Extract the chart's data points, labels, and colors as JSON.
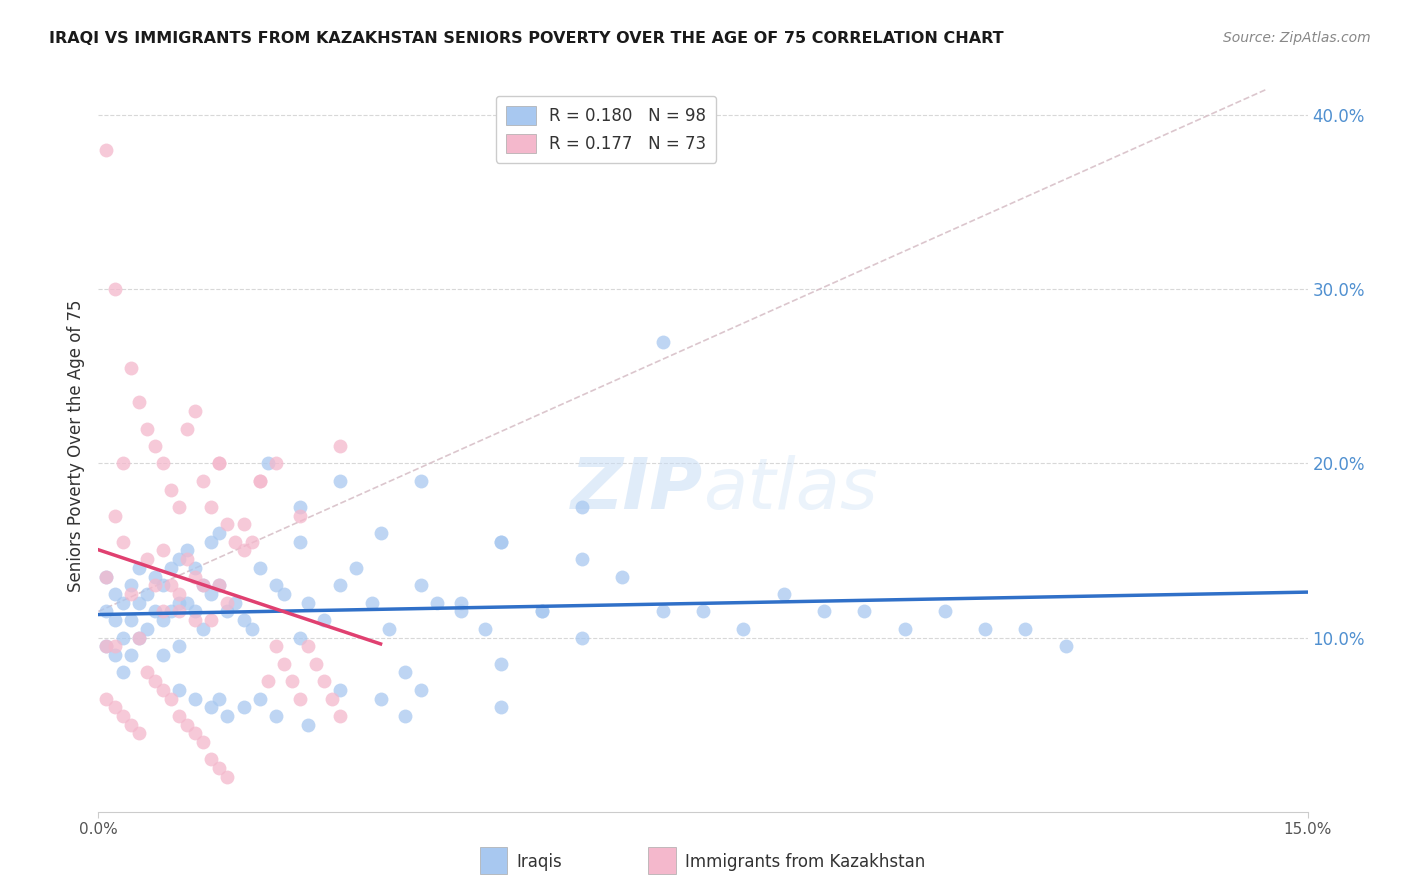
{
  "title": "IRAQI VS IMMIGRANTS FROM KAZAKHSTAN SENIORS POVERTY OVER THE AGE OF 75 CORRELATION CHART",
  "source": "Source: ZipAtlas.com",
  "ylabel": "Seniors Poverty Over the Age of 75",
  "xlim": [
    0.0,
    0.15
  ],
  "ylim": [
    0.0,
    0.42
  ],
  "yticks": [
    0.1,
    0.2,
    0.3,
    0.4
  ],
  "ytick_labels": [
    "10.0%",
    "20.0%",
    "30.0%",
    "40.0%"
  ],
  "iraqi_color": "#a8c8f0",
  "kaz_color": "#f4b8cc",
  "iraqi_line_color": "#3070c8",
  "kaz_line_color": "#e04070",
  "diag_line_color": "#d8c0c8",
  "R_iraqi": 0.18,
  "N_iraqi": 98,
  "R_kaz": 0.177,
  "N_kaz": 73,
  "watermark": "ZIPatlas",
  "background_color": "#ffffff",
  "grid_color": "#d8d8d8",
  "iraqi_x": [
    0.001,
    0.001,
    0.001,
    0.002,
    0.002,
    0.002,
    0.003,
    0.003,
    0.003,
    0.004,
    0.004,
    0.004,
    0.005,
    0.005,
    0.005,
    0.006,
    0.006,
    0.007,
    0.007,
    0.008,
    0.008,
    0.008,
    0.009,
    0.009,
    0.01,
    0.01,
    0.01,
    0.011,
    0.011,
    0.012,
    0.012,
    0.013,
    0.013,
    0.014,
    0.014,
    0.015,
    0.015,
    0.016,
    0.017,
    0.018,
    0.019,
    0.02,
    0.021,
    0.022,
    0.023,
    0.025,
    0.026,
    0.028,
    0.03,
    0.032,
    0.034,
    0.036,
    0.038,
    0.04,
    0.042,
    0.045,
    0.048,
    0.05,
    0.055,
    0.06,
    0.065,
    0.07,
    0.075,
    0.08,
    0.085,
    0.09,
    0.095,
    0.1,
    0.105,
    0.11,
    0.115,
    0.12,
    0.038,
    0.05,
    0.06,
    0.07,
    0.02,
    0.025,
    0.03,
    0.035,
    0.04,
    0.045,
    0.05,
    0.055,
    0.015,
    0.018,
    0.022,
    0.026,
    0.01,
    0.012,
    0.014,
    0.016,
    0.025,
    0.03,
    0.035,
    0.04,
    0.05,
    0.06
  ],
  "iraqi_y": [
    0.135,
    0.115,
    0.095,
    0.125,
    0.11,
    0.09,
    0.12,
    0.1,
    0.08,
    0.13,
    0.11,
    0.09,
    0.14,
    0.12,
    0.1,
    0.125,
    0.105,
    0.135,
    0.115,
    0.13,
    0.11,
    0.09,
    0.14,
    0.115,
    0.145,
    0.12,
    0.095,
    0.15,
    0.12,
    0.14,
    0.115,
    0.13,
    0.105,
    0.155,
    0.125,
    0.16,
    0.13,
    0.115,
    0.12,
    0.11,
    0.105,
    0.14,
    0.2,
    0.13,
    0.125,
    0.155,
    0.12,
    0.11,
    0.19,
    0.14,
    0.12,
    0.105,
    0.08,
    0.13,
    0.12,
    0.115,
    0.105,
    0.085,
    0.115,
    0.145,
    0.135,
    0.115,
    0.115,
    0.105,
    0.125,
    0.115,
    0.115,
    0.105,
    0.115,
    0.105,
    0.105,
    0.095,
    0.055,
    0.155,
    0.175,
    0.27,
    0.065,
    0.1,
    0.13,
    0.16,
    0.19,
    0.12,
    0.155,
    0.115,
    0.065,
    0.06,
    0.055,
    0.05,
    0.07,
    0.065,
    0.06,
    0.055,
    0.175,
    0.07,
    0.065,
    0.07,
    0.06,
    0.1
  ],
  "kaz_x": [
    0.001,
    0.001,
    0.001,
    0.002,
    0.002,
    0.002,
    0.003,
    0.003,
    0.004,
    0.004,
    0.005,
    0.005,
    0.006,
    0.006,
    0.007,
    0.007,
    0.008,
    0.008,
    0.009,
    0.009,
    0.01,
    0.01,
    0.011,
    0.011,
    0.012,
    0.012,
    0.013,
    0.013,
    0.014,
    0.014,
    0.015,
    0.015,
    0.016,
    0.016,
    0.017,
    0.018,
    0.019,
    0.02,
    0.021,
    0.022,
    0.023,
    0.024,
    0.025,
    0.026,
    0.027,
    0.028,
    0.029,
    0.03,
    0.001,
    0.002,
    0.003,
    0.004,
    0.005,
    0.006,
    0.007,
    0.008,
    0.009,
    0.01,
    0.011,
    0.012,
    0.013,
    0.014,
    0.015,
    0.016,
    0.008,
    0.01,
    0.012,
    0.015,
    0.018,
    0.02,
    0.022,
    0.025,
    0.03
  ],
  "kaz_y": [
    0.38,
    0.135,
    0.095,
    0.3,
    0.17,
    0.095,
    0.2,
    0.155,
    0.255,
    0.125,
    0.235,
    0.1,
    0.22,
    0.145,
    0.21,
    0.13,
    0.2,
    0.15,
    0.185,
    0.13,
    0.175,
    0.125,
    0.22,
    0.145,
    0.23,
    0.135,
    0.19,
    0.13,
    0.175,
    0.11,
    0.2,
    0.13,
    0.165,
    0.12,
    0.155,
    0.165,
    0.155,
    0.19,
    0.075,
    0.095,
    0.085,
    0.075,
    0.065,
    0.095,
    0.085,
    0.075,
    0.065,
    0.055,
    0.065,
    0.06,
    0.055,
    0.05,
    0.045,
    0.08,
    0.075,
    0.07,
    0.065,
    0.055,
    0.05,
    0.045,
    0.04,
    0.03,
    0.025,
    0.02,
    0.115,
    0.115,
    0.11,
    0.2,
    0.15,
    0.19,
    0.2,
    0.17,
    0.21
  ]
}
